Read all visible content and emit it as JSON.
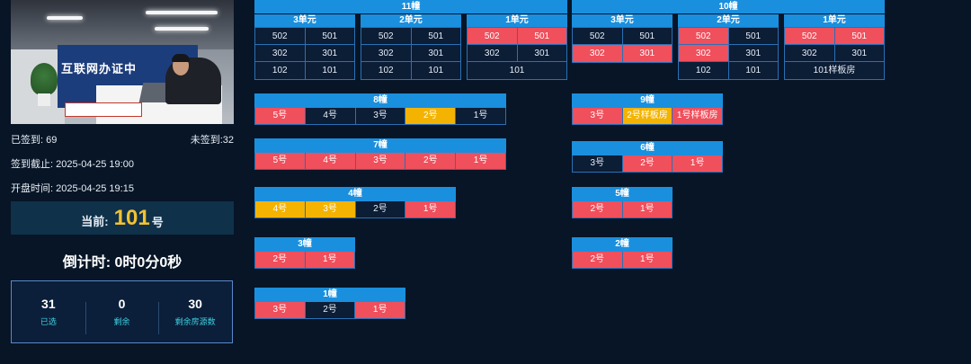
{
  "video": {
    "banner_text": "互联网办证中"
  },
  "stats": {
    "signed": "已签到: 69",
    "unsigned": "未签到:32",
    "deadline": "签到截止: 2025-04-25 19:00",
    "opening": "开盘时间: 2025-04-25 19:15"
  },
  "current": {
    "label": "当前:",
    "number": "101",
    "suffix": "号"
  },
  "countdown": "倒计时:  0时0分0秒",
  "counts": [
    {
      "value": "31",
      "label": "已选"
    },
    {
      "value": "0",
      "label": "剩余"
    },
    {
      "value": "30",
      "label": "剩余房源数"
    }
  ],
  "colors": {
    "sold": "#f04f5c",
    "reserved": "#f3b300",
    "available": "#0c1d36",
    "header": "#1a8fde"
  },
  "grid_towers": [
    {
      "name": "11幢",
      "units": [
        {
          "name": "3单元",
          "rows": [
            [
              {
                "t": "502",
                "s": "a"
              },
              {
                "t": "501",
                "s": "a"
              }
            ],
            [
              {
                "t": "302",
                "s": "a"
              },
              {
                "t": "301",
                "s": "a"
              }
            ],
            [
              {
                "t": "102",
                "s": "a"
              },
              {
                "t": "101",
                "s": "a"
              }
            ]
          ]
        },
        {
          "name": "2单元",
          "rows": [
            [
              {
                "t": "502",
                "s": "a"
              },
              {
                "t": "501",
                "s": "a"
              }
            ],
            [
              {
                "t": "302",
                "s": "a"
              },
              {
                "t": "301",
                "s": "a"
              }
            ],
            [
              {
                "t": "102",
                "s": "a"
              },
              {
                "t": "101",
                "s": "a"
              }
            ]
          ]
        },
        {
          "name": "1单元",
          "rows": [
            [
              {
                "t": "502",
                "s": "r"
              },
              {
                "t": "501",
                "s": "r"
              }
            ],
            [
              {
                "t": "302",
                "s": "a"
              },
              {
                "t": "301",
                "s": "a"
              }
            ],
            [
              {
                "t": "101",
                "s": "a"
              }
            ]
          ]
        }
      ]
    },
    {
      "name": "10幢",
      "units": [
        {
          "name": "3单元",
          "rows": [
            [
              {
                "t": "502",
                "s": "a"
              },
              {
                "t": "501",
                "s": "a"
              }
            ],
            [
              {
                "t": "302",
                "s": "r"
              },
              {
                "t": "301",
                "s": "r"
              }
            ]
          ]
        },
        {
          "name": "2单元",
          "rows": [
            [
              {
                "t": "502",
                "s": "r"
              },
              {
                "t": "501",
                "s": "a"
              }
            ],
            [
              {
                "t": "302",
                "s": "r"
              },
              {
                "t": "301",
                "s": "a"
              }
            ],
            [
              {
                "t": "102",
                "s": "a"
              },
              {
                "t": "101",
                "s": "a"
              }
            ]
          ]
        },
        {
          "name": "1单元",
          "rows": [
            [
              {
                "t": "502",
                "s": "r"
              },
              {
                "t": "501",
                "s": "r"
              }
            ],
            [
              {
                "t": "302",
                "s": "a"
              },
              {
                "t": "301",
                "s": "a"
              }
            ],
            [
              {
                "t": "101样板房",
                "s": "a"
              }
            ]
          ]
        }
      ]
    }
  ],
  "row_towers": [
    {
      "name": "8幢",
      "cells": [
        {
          "t": "5号",
          "s": "r"
        },
        {
          "t": "4号",
          "s": "a"
        },
        {
          "t": "3号",
          "s": "a"
        },
        {
          "t": "2号",
          "s": "y"
        },
        {
          "t": "1号",
          "s": "a"
        }
      ]
    },
    {
      "name": "9幢",
      "cells": [
        {
          "t": "3号",
          "s": "r"
        },
        {
          "t": "2号样板房",
          "s": "y"
        },
        {
          "t": "1号样板房",
          "s": "r"
        }
      ]
    },
    {
      "name": "7幢",
      "cells": [
        {
          "t": "5号",
          "s": "r"
        },
        {
          "t": "4号",
          "s": "r"
        },
        {
          "t": "3号",
          "s": "r"
        },
        {
          "t": "2号",
          "s": "r"
        },
        {
          "t": "1号",
          "s": "r"
        }
      ]
    },
    {
      "name": "6幢",
      "cells": [
        {
          "t": "3号",
          "s": "a"
        },
        {
          "t": "2号",
          "s": "r"
        },
        {
          "t": "1号",
          "s": "r"
        }
      ]
    },
    {
      "name": "4幢",
      "cells": [
        {
          "t": "4号",
          "s": "y"
        },
        {
          "t": "3号",
          "s": "y"
        },
        {
          "t": "2号",
          "s": "a"
        },
        {
          "t": "1号",
          "s": "r"
        }
      ]
    },
    {
      "name": "5幢",
      "cells": [
        {
          "t": "2号",
          "s": "r"
        },
        {
          "t": "1号",
          "s": "r"
        }
      ]
    },
    {
      "name": "3幢",
      "cells": [
        {
          "t": "2号",
          "s": "r"
        },
        {
          "t": "1号",
          "s": "r"
        }
      ]
    },
    {
      "name": "2幢",
      "cells": [
        {
          "t": "2号",
          "s": "r"
        },
        {
          "t": "1号",
          "s": "r"
        }
      ]
    },
    {
      "name": "1幢",
      "cells": [
        {
          "t": "3号",
          "s": "r"
        },
        {
          "t": "2号",
          "s": "a"
        },
        {
          "t": "1号",
          "s": "r"
        }
      ]
    }
  ]
}
